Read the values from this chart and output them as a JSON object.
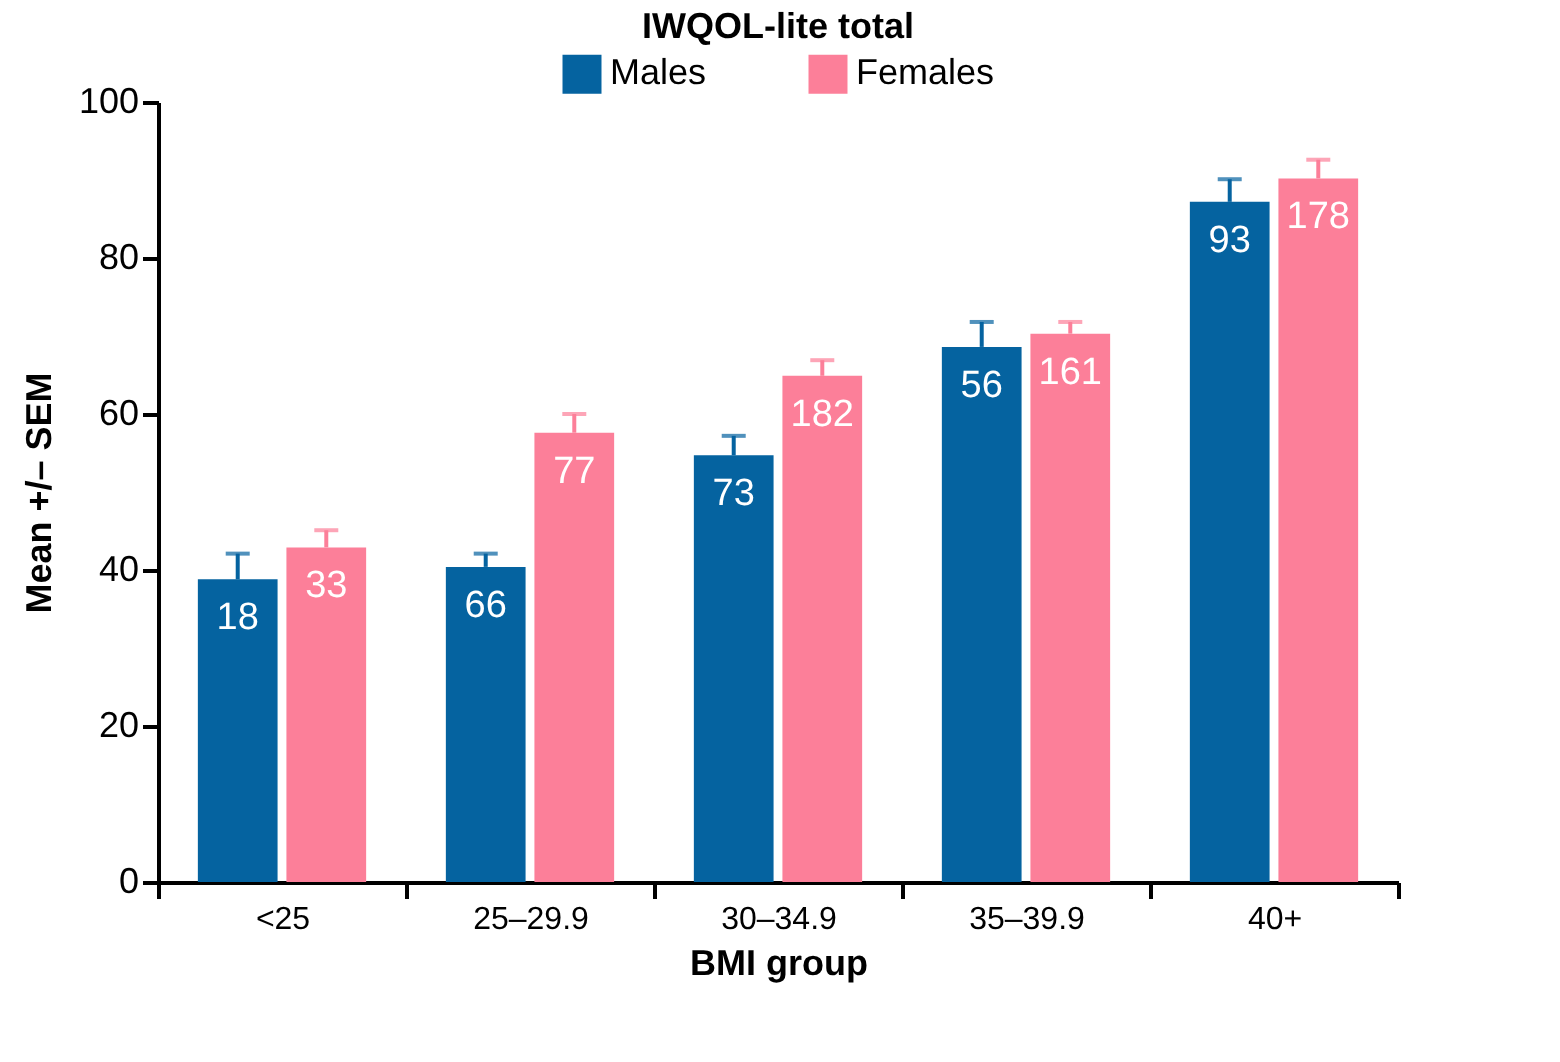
{
  "chart_data": {
    "type": "bar",
    "title": "IWQOL-lite total",
    "xlabel": "BMI group",
    "ylabel": "Mean +/– SEM",
    "categories": [
      "<25",
      "25–29.9",
      "30–34.9",
      "35–39.9",
      "40+"
    ],
    "series": [
      {
        "name": "Males",
        "color": "#0563a0",
        "values": [
          38.8,
          40.4,
          54.7,
          68.6,
          87.2
        ],
        "errors": [
          3.3,
          1.7,
          2.5,
          3.2,
          2.9
        ]
      },
      {
        "name": "Females",
        "color": "#fc7f99",
        "values": [
          42.9,
          57.6,
          64.9,
          70.3,
          90.2
        ],
        "errors": [
          2.2,
          2.4,
          2.0,
          1.5,
          2.4
        ]
      }
    ],
    "annotations": [
      {
        "text": "18",
        "x": "<25",
        "y": 38.8
      },
      {
        "text": "33",
        "x": "<25",
        "y": 42.9
      },
      {
        "text": "66",
        "x": "25–29.9",
        "y": 40.4
      },
      {
        "text": "77",
        "x": "25–29.9",
        "y": 57.6
      },
      {
        "text": "73",
        "x": "30–34.9",
        "y": 54.7
      },
      {
        "text": "182",
        "x": "30–34.9",
        "y": 64.9
      },
      {
        "text": "56",
        "x": "35–39.9",
        "y": 68.6
      },
      {
        "text": "161",
        "x": "35–39.9",
        "y": 70.3
      },
      {
        "text": "93",
        "x": "40+",
        "y": 87.2
      },
      {
        "text": "178",
        "x": "40+",
        "y": 90.2
      }
    ],
    "ylim": [
      0,
      100
    ],
    "yticks": [
      0,
      20,
      40,
      60,
      80,
      100
    ],
    "grid": false,
    "legend": "top"
  }
}
